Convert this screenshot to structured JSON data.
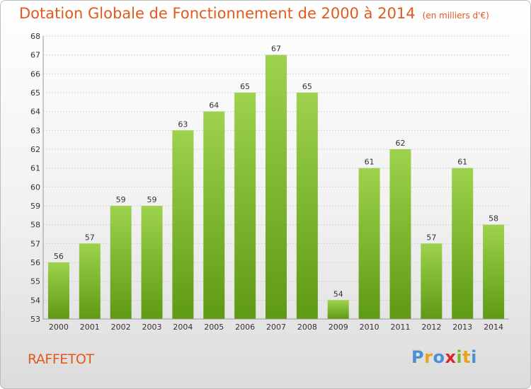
{
  "header": {
    "title": "Dotation Globale de Fonctionnement de 2000 à 2014",
    "unit": "(en milliers d'€)"
  },
  "footer": {
    "commune": "RAFFETOT",
    "logo_letters": [
      "P",
      "r",
      "o",
      "x",
      "i",
      "t",
      "i"
    ],
    "logo_colors": [
      "#4a90d9",
      "#e8a21c",
      "#4a90d9",
      "#d9262c",
      "#7ab830",
      "#e8a21c",
      "#4a90d9"
    ]
  },
  "colors": {
    "bar_top": "#9dd24c",
    "bar_bottom": "#5f9a14",
    "grid": "#d4d4d4",
    "title": "#e05a1c"
  },
  "chart_data": {
    "type": "bar",
    "categories": [
      "2000",
      "2001",
      "2002",
      "2003",
      "2004",
      "2005",
      "2006",
      "2007",
      "2008",
      "2009",
      "2010",
      "2011",
      "2012",
      "2013",
      "2014"
    ],
    "values": [
      56,
      57,
      59,
      59,
      63,
      64,
      65,
      67,
      65,
      54,
      61,
      62,
      57,
      61,
      58
    ],
    "ylim": [
      53,
      68
    ],
    "yticks": [
      53,
      54,
      55,
      56,
      57,
      58,
      59,
      60,
      61,
      62,
      63,
      64,
      65,
      66,
      67,
      68
    ],
    "title": "Dotation Globale de Fonctionnement de 2000 à 2014",
    "xlabel": "",
    "ylabel": "",
    "grid": true,
    "data_labels": true
  }
}
